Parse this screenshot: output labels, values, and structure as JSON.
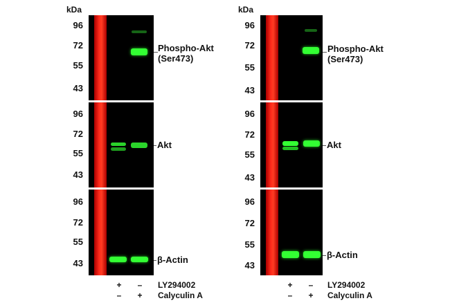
{
  "kda_label": "kDa",
  "mw_markers": [
    "96",
    "72",
    "55",
    "43"
  ],
  "targets": {
    "phospho_akt_line1": "Phospho-Akt",
    "phospho_akt_line2": "(Ser473)",
    "akt": "Akt",
    "beta_actin": "β-Actin"
  },
  "conditions": {
    "ly294002_label": "LY294002",
    "calyculin_label": "Calyculin A",
    "left_panel": {
      "ly294002": [
        "+",
        "–"
      ],
      "calyculin": [
        "–",
        "+"
      ]
    },
    "right_panel": {
      "ly294002": [
        "+",
        "–"
      ],
      "calyculin": [
        "–",
        "+"
      ]
    }
  },
  "colors": {
    "ladder": "#ff2a1a",
    "band": "#33ff33",
    "blot_bg": "#000000"
  }
}
